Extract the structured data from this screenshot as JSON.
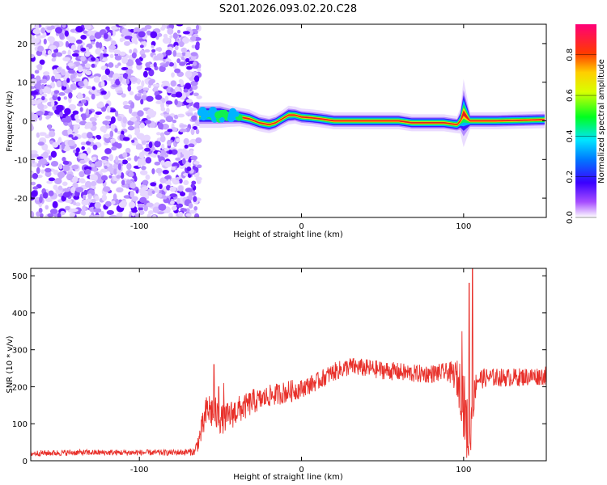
{
  "title": "S201.2026.093.02.20.C28",
  "chart_data": [
    {
      "type": "heatmap",
      "xlabel": "Height of straight line (km)",
      "ylabel": "Frequency (Hz)",
      "xlim": [
        -167,
        151
      ],
      "ylim": [
        -25,
        25
      ],
      "xticks": [
        -100,
        0,
        100
      ],
      "yticks": [
        -20,
        -10,
        0,
        10,
        20
      ],
      "noise_region": {
        "x": [
          -167,
          -63
        ],
        "description": "scattered low-amplitude noise"
      },
      "ridge": {
        "x": [
          -63,
          -56,
          -50,
          -44,
          -38,
          -32,
          -26,
          -20,
          -16,
          -12,
          -8,
          -4,
          0,
          6,
          12,
          20,
          40,
          60,
          68,
          78,
          88,
          96,
          98,
          100,
          104,
          112,
          120,
          140,
          150
        ],
        "freq": [
          1.5,
          1.5,
          1.5,
          1.2,
          1.0,
          0.5,
          -0.5,
          -1.0,
          -0.5,
          0.5,
          1.5,
          1.5,
          1.0,
          0.8,
          0.5,
          0.0,
          0.0,
          0.0,
          -0.5,
          -0.5,
          -0.5,
          -1.0,
          0.0,
          2.0,
          0.0,
          0.0,
          0.0,
          0.2,
          0.3
        ],
        "width": [
          3.0,
          3.0,
          3.0,
          2.5,
          2.2,
          2.2,
          2.0,
          2.0,
          2.0,
          2.0,
          2.2,
          2.0,
          2.0,
          2.0,
          2.0,
          2.0,
          2.0,
          2.0,
          2.0,
          2.0,
          2.0,
          2.0,
          3.0,
          8.0,
          2.0,
          2.0,
          2.0,
          2.0,
          2.0
        ]
      },
      "colorbar": {
        "label": "Normalized spectral amplitude",
        "range": [
          0,
          0.95
        ],
        "ticks": [
          0.0,
          0.2,
          0.4,
          0.6,
          0.8
        ]
      }
    },
    {
      "type": "line",
      "xlabel": "Height of straight line (km)",
      "ylabel": "SNR (10 * v/v)",
      "xlim": [
        -167,
        151
      ],
      "ylim": [
        0,
        520
      ],
      "xticks": [
        -100,
        0,
        100
      ],
      "yticks": [
        0,
        100,
        200,
        300,
        400,
        500
      ],
      "series": [
        {
          "name": "SNR",
          "color": "#e8302a",
          "x": [
            -167,
            -140,
            -100,
            -80,
            -66,
            -63,
            -58,
            -54,
            -50,
            -45,
            -40,
            -35,
            -30,
            -25,
            -20,
            -15,
            -10,
            -5,
            0,
            10,
            20,
            30,
            40,
            50,
            60,
            70,
            80,
            90,
            95,
            99,
            101,
            103,
            104,
            105,
            108,
            115,
            130,
            151
          ],
          "mean": [
            20,
            22,
            22,
            22,
            24,
            60,
            140,
            130,
            110,
            120,
            135,
            145,
            160,
            165,
            175,
            180,
            185,
            190,
            195,
            215,
            240,
            255,
            250,
            245,
            240,
            235,
            235,
            240,
            230,
            190,
            120,
            60,
            50,
            130,
            220,
            225,
            225,
            230
          ],
          "noise": [
            8,
            8,
            8,
            8,
            10,
            30,
            50,
            50,
            40,
            40,
            40,
            35,
            35,
            30,
            30,
            30,
            30,
            30,
            25,
            25,
            25,
            25,
            25,
            25,
            25,
            25,
            25,
            25,
            40,
            90,
            100,
            80,
            60,
            60,
            30,
            25,
            25,
            25
          ],
          "spikes": [
            [
              -54,
              260
            ],
            [
              -51,
              200
            ],
            [
              -48,
              210
            ],
            [
              103.5,
              480
            ],
            [
              105.5,
              520
            ],
            [
              99,
              350
            ]
          ]
        }
      ]
    }
  ]
}
